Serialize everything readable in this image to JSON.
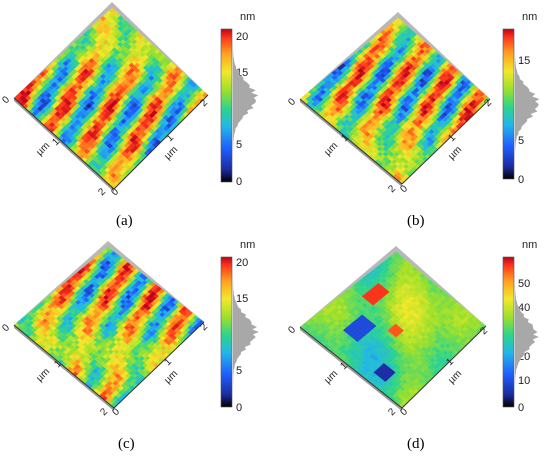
{
  "figure": {
    "colormap": [
      "#000000",
      "#1b2a9c",
      "#1f5fff",
      "#22b6e8",
      "#2ed48a",
      "#9ee02a",
      "#f2e82a",
      "#ffa020",
      "#ff3a1c",
      "#c0001a"
    ],
    "histogram_color": "#a8a8a8",
    "panels": [
      {
        "caption": "(a)",
        "unit": "nm",
        "colorbar_ticks": [
          "20",
          "15",
          "10",
          "5",
          "0"
        ],
        "axis_ticks": {
          "left_corner": "0",
          "bottom_corner": "2",
          "right_corner": "2",
          "mid_left": "1",
          "mid_right": "1",
          "unit_left": "µm",
          "unit_right": "µm"
        }
      },
      {
        "caption": "(b)",
        "unit": "nm",
        "colorbar_ticks": [
          "15",
          "10",
          "5",
          "0"
        ],
        "axis_ticks": {
          "left_corner": "0",
          "bottom_corner": "2",
          "right_corner": "2",
          "mid_left": "1",
          "mid_right": "1",
          "unit_left": "µm",
          "unit_right": "µm"
        }
      },
      {
        "caption": "(c)",
        "unit": "nm",
        "colorbar_ticks": [
          "20",
          "15",
          "10",
          "5",
          "0"
        ],
        "axis_ticks": {
          "left_corner": "0",
          "bottom_corner": "2",
          "right_corner": "2",
          "mid_left": "1",
          "mid_right": "1",
          "unit_left": "µm",
          "unit_right": "µm"
        }
      },
      {
        "caption": "(d)",
        "unit": "nm",
        "colorbar_ticks": [
          "50",
          "40",
          "30",
          "20",
          "10",
          "0"
        ],
        "axis_ticks": {
          "left_corner": "0",
          "bottom_corner": "2",
          "right_corner": "2",
          "mid_left": "1",
          "mid_right": "1",
          "unit_left": "µm",
          "unit_right": "µm"
        }
      }
    ]
  }
}
